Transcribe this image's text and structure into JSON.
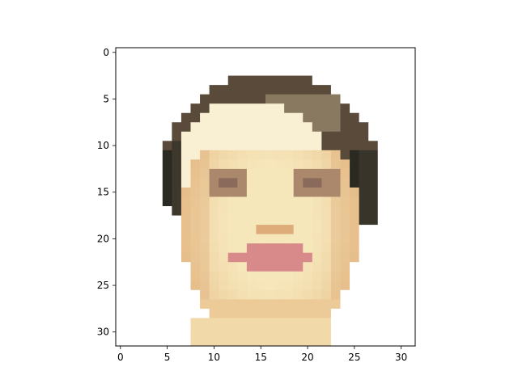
{
  "figure": {
    "type": "image",
    "subject": "pixelated portrait of a face",
    "image_grid": {
      "rows": 32,
      "cols": 32
    },
    "x_ticks": [
      "0",
      "5",
      "10",
      "15",
      "20",
      "25",
      "30"
    ],
    "y_ticks": [
      "0",
      "5",
      "10",
      "15",
      "20",
      "25",
      "30"
    ],
    "x_tick_values": [
      0,
      5,
      10,
      15,
      20,
      25,
      30
    ],
    "y_tick_values": [
      0,
      5,
      10,
      15,
      20,
      25,
      30
    ],
    "axis_extent": {
      "x": [
        -0.5,
        31.5
      ],
      "y": [
        31.5,
        -0.5
      ]
    },
    "colors": {
      "background": "#ffffff",
      "skin_light": "#f6e7bb",
      "skin_mid": "#e8bf8a",
      "skin_shadow": "#d8a06e",
      "hair": "#5a4a3a",
      "hair_dark": "#2a2a22",
      "eyes": "#8a6a5a",
      "lips": "#d88a8a"
    }
  }
}
